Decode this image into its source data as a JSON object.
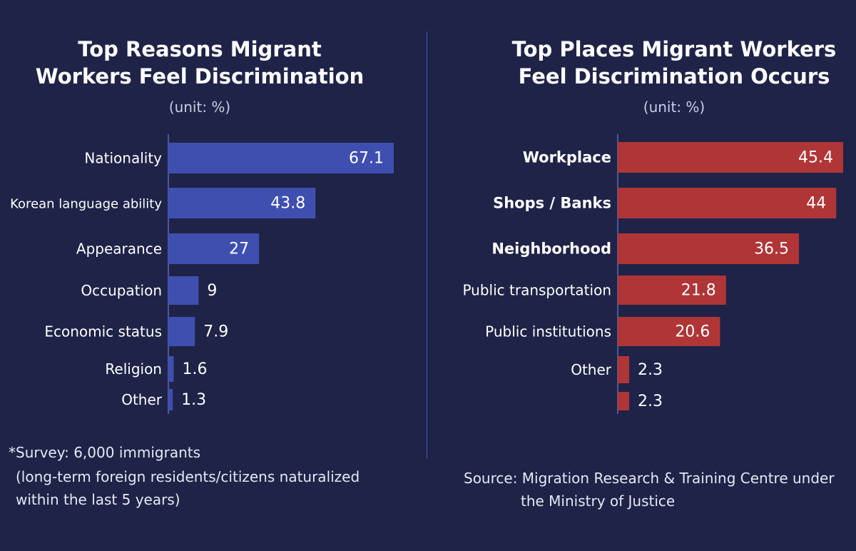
{
  "colors": {
    "background": "#1f2347",
    "left_bar": "#3f4fb0",
    "right_bar": "#b03537",
    "axis": "#5a6ab5"
  },
  "chart_data": [
    {
      "type": "bar",
      "orientation": "horizontal",
      "title": "Top Reasons Migrant Workers Feel Discrimination",
      "title_lines": [
        "Top Reasons Migrant",
        "Workers Feel Discrimination"
      ],
      "subtitle": "(unit: %)",
      "categories": [
        "Nationality",
        "Korean language ability",
        "Appearance",
        "Occupation",
        "Economic status",
        "Religion",
        "Other"
      ],
      "values": [
        67.1,
        43.8,
        27,
        9,
        7.9,
        1.6,
        1.3
      ],
      "value_labels": [
        "67.1",
        "43.8",
        "27",
        "9",
        "7.9",
        "1.6",
        "1.3"
      ],
      "xlim": [
        0,
        67.1
      ],
      "grid": false,
      "legend": "none"
    },
    {
      "type": "bar",
      "orientation": "horizontal",
      "title": "Top Places Migrant Workers Feel Discrimination Occurs",
      "title_lines": [
        "Top Places Migrant Workers",
        "Feel Discrimination Occurs"
      ],
      "subtitle": "(unit: %)",
      "categories": [
        "Workplace",
        "Shops / Banks",
        "Neighborhood",
        "Public transportation",
        "Public institutions",
        "Other",
        ""
      ],
      "values": [
        45.4,
        44,
        36.5,
        21.8,
        20.6,
        2.3,
        2.3
      ],
      "value_labels": [
        "45.4",
        "44",
        "36.5",
        "21.8",
        "20.6",
        "2.3",
        "2.3"
      ],
      "xlim": [
        0,
        45.4
      ],
      "grid": false,
      "legend": "none"
    }
  ],
  "footnote": {
    "line1": "*Survey: 6,000 immigrants",
    "line2": "(long-term foreign residents/citizens naturalized within the last 5 years)"
  },
  "source": {
    "line1": "Source: Migration Research & Training Centre under",
    "line2": "the Ministry of Justice"
  }
}
